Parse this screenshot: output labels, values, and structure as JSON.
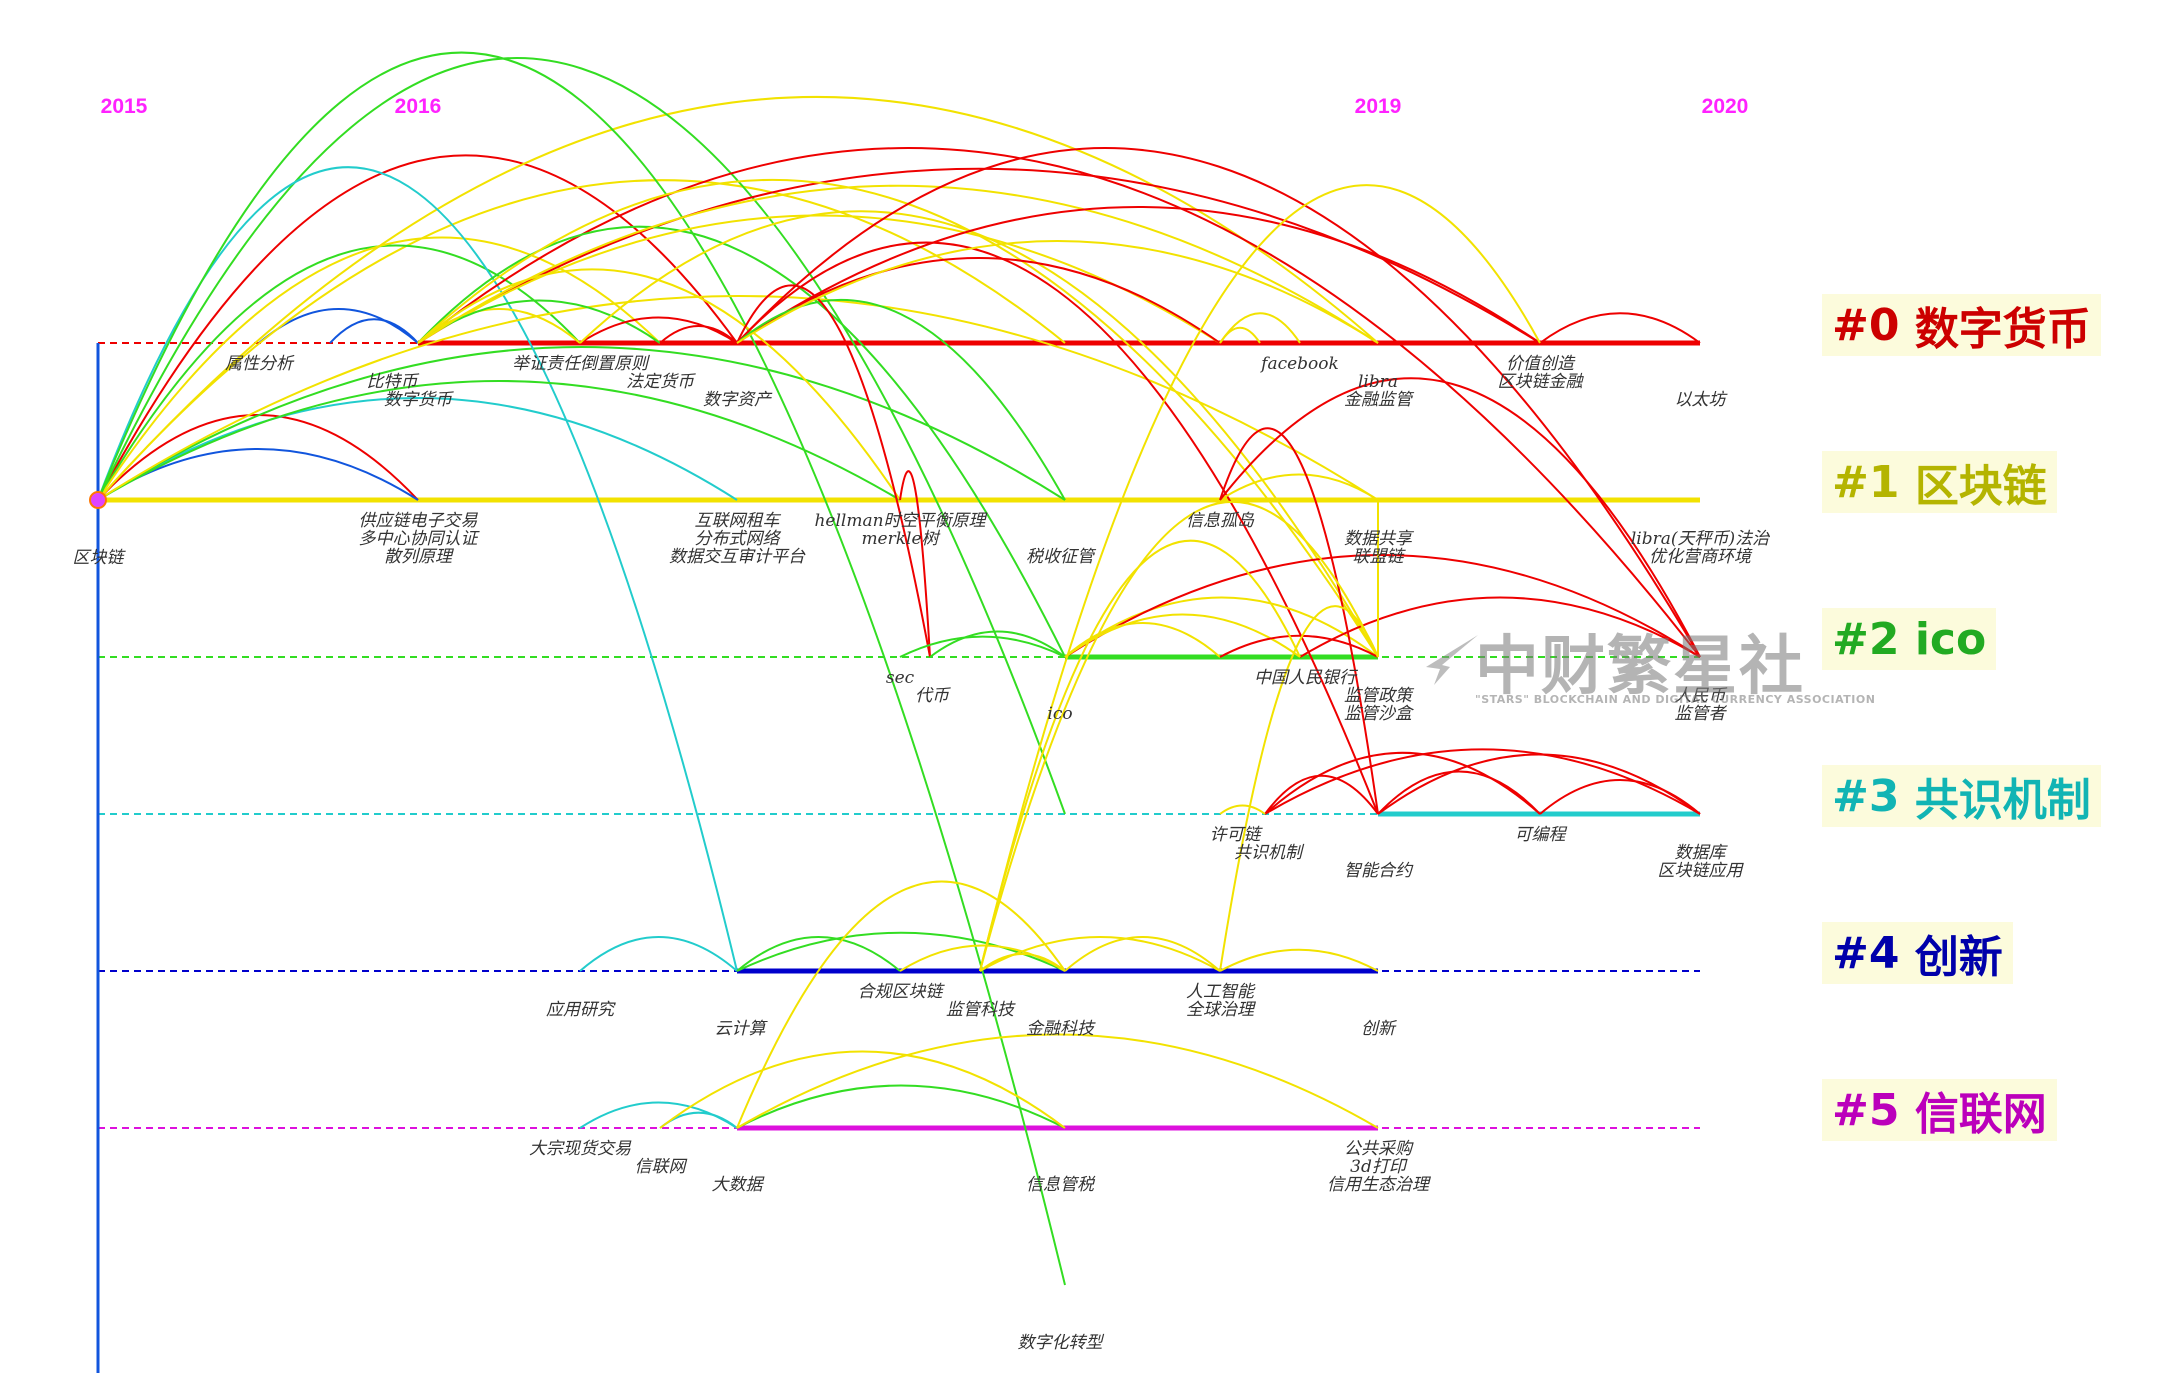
{
  "years": [
    "2015",
    "2016",
    "2019",
    "2020"
  ],
  "clusters": [
    {
      "id": "#0",
      "name": "数字货币",
      "color": "#cc0000"
    },
    {
      "id": "#1",
      "name": "区块链",
      "color": "#b4b400"
    },
    {
      "id": "#2",
      "name": "ico",
      "color": "#22aa22"
    },
    {
      "id": "#3",
      "name": "共识机制",
      "color": "#11b4b4"
    },
    {
      "id": "#4",
      "name": "创新",
      "color": "#0000aa"
    },
    {
      "id": "#5",
      "name": "信联网",
      "color": "#bb00bb"
    }
  ],
  "terms": {
    "c0": [
      "属性分析",
      "比特币",
      "数字货币",
      "举证责任倒置原则",
      "法定货币",
      "数字资产",
      "facebook",
      "libra",
      "金融监管",
      "价值创造",
      "区块链金融",
      "以太坊"
    ],
    "c1": [
      "区块链",
      "供应链电子交易",
      "多中心协同认证",
      "散列原理",
      "互联网租车",
      "分布式网络",
      "数据交互审计平台",
      "hellman时空平衡原理",
      "merkle树",
      "税收征管",
      "信息孤岛",
      "数据共享",
      "联盟链",
      "libra(天秤币)法治",
      "优化营商环境"
    ],
    "c2": [
      "sec",
      "代币",
      "ico",
      "中国人民银行",
      "监管政策",
      "监管沙盒",
      "人民币",
      "监管者"
    ],
    "c3": [
      "许可链",
      "共识机制",
      "智能合约",
      "可编程",
      "数据库",
      "区块链应用"
    ],
    "c4": [
      "应用研究",
      "云计算",
      "合规区块链",
      "监管科技",
      "金融科技",
      "人工智能",
      "全球治理",
      "创新"
    ],
    "c5": [
      "大宗现货交易",
      "信联网",
      "大数据",
      "信息管税",
      "公共采购",
      "3d打印",
      "信用生态治理",
      "数字化转型"
    ]
  },
  "watermark": {
    "title": "中财繁星社",
    "subtitle": "\"STARS\" BLOCKCHAIN AND DIGITAL CURRENCY ASSOCIATION"
  }
}
